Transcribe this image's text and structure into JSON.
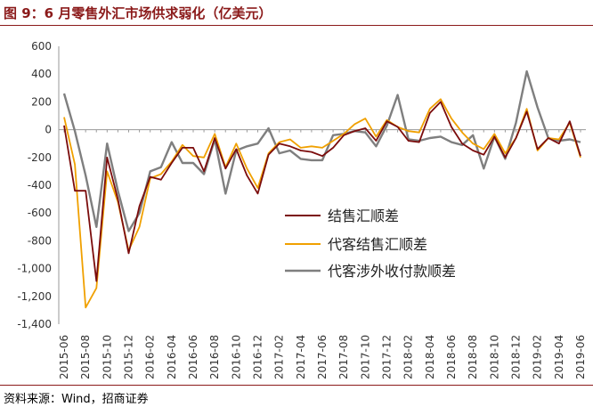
{
  "figure": {
    "title": "图 9：6 月零售外汇市场供求弱化（亿美元）",
    "source": "资料来源：Wind，招商证券"
  },
  "chart_data": {
    "type": "line",
    "ylim": [
      -1400,
      600
    ],
    "yticks": [
      600,
      400,
      200,
      0,
      -200,
      -400,
      -600,
      -800,
      -1000,
      -1200,
      -1400
    ],
    "ytick_labels": [
      "600",
      "400",
      "200",
      "0",
      "-200",
      "-400",
      "-600",
      "-800",
      "-1,000",
      "-1,200",
      "-1,400"
    ],
    "x": [
      "2015-06",
      "2015-07",
      "2015-08",
      "2015-09",
      "2015-10",
      "2015-11",
      "2015-12",
      "2016-01",
      "2016-02",
      "2016-03",
      "2016-04",
      "2016-05",
      "2016-06",
      "2016-07",
      "2016-08",
      "2016-09",
      "2016-10",
      "2016-11",
      "2016-12",
      "2017-01",
      "2017-02",
      "2017-03",
      "2017-04",
      "2017-05",
      "2017-06",
      "2017-07",
      "2017-08",
      "2017-09",
      "2017-10",
      "2017-11",
      "2017-12",
      "2018-01",
      "2018-02",
      "2018-03",
      "2018-04",
      "2018-05",
      "2018-06",
      "2018-07",
      "2018-08",
      "2018-09",
      "2018-10",
      "2018-11",
      "2018-12",
      "2019-01",
      "2019-02",
      "2019-03",
      "2019-04",
      "2019-05",
      "2019-06"
    ],
    "xtick_labels": [
      "2015-06",
      "2015-08",
      "2015-10",
      "2015-12",
      "2016-02",
      "2016-04",
      "2016-06",
      "2016-08",
      "2016-10",
      "2016-12",
      "2017-02",
      "2017-04",
      "2017-06",
      "2017-08",
      "2017-10",
      "2017-12",
      "2018-02",
      "2018-04",
      "2018-06",
      "2018-08",
      "2018-10",
      "2018-12",
      "2019-02",
      "2019-04",
      "2019-06"
    ],
    "grid": false,
    "legend_position": "center-right",
    "series": [
      {
        "name": "结售汇顺差",
        "color": "#7B0C0C",
        "values": [
          30,
          -440,
          -440,
          -1090,
          -200,
          -500,
          -890,
          -550,
          -340,
          -360,
          -240,
          -130,
          -130,
          -300,
          -60,
          -280,
          -140,
          -330,
          -460,
          -180,
          -100,
          -120,
          -150,
          -160,
          -190,
          -130,
          -40,
          -10,
          10,
          -80,
          60,
          20,
          -80,
          -90,
          120,
          200,
          20,
          -100,
          -150,
          -180,
          -50,
          -200,
          -60,
          130,
          -140,
          -60,
          -100,
          60,
          -190
        ]
      },
      {
        "name": "代客结售汇顺差",
        "color": "#F0A000",
        "values": [
          90,
          -250,
          -1280,
          -1140,
          -300,
          -520,
          -870,
          -700,
          -350,
          -320,
          -230,
          -110,
          -190,
          -200,
          -30,
          -270,
          -100,
          -280,
          -420,
          -170,
          -90,
          -70,
          -130,
          -120,
          -130,
          -80,
          -30,
          40,
          80,
          -50,
          70,
          20,
          -10,
          -20,
          150,
          220,
          80,
          -20,
          -100,
          -140,
          -30,
          -170,
          -60,
          150,
          -150,
          -60,
          -70,
          50,
          -200
        ]
      },
      {
        "name": "代客涉外收付款顺差",
        "color": "#7F7F7F",
        "values": [
          260,
          -10,
          -330,
          -700,
          -100,
          -440,
          -730,
          -600,
          -300,
          -270,
          -90,
          -240,
          -240,
          -320,
          -70,
          -460,
          -150,
          -120,
          -100,
          10,
          -170,
          -150,
          -210,
          -220,
          -220,
          -40,
          -30,
          -10,
          -20,
          -120,
          30,
          250,
          -70,
          -80,
          -60,
          -50,
          -90,
          -110,
          -40,
          -280,
          -50,
          -210,
          50,
          420,
          160,
          -60,
          -80,
          -70,
          -90
        ]
      }
    ]
  }
}
